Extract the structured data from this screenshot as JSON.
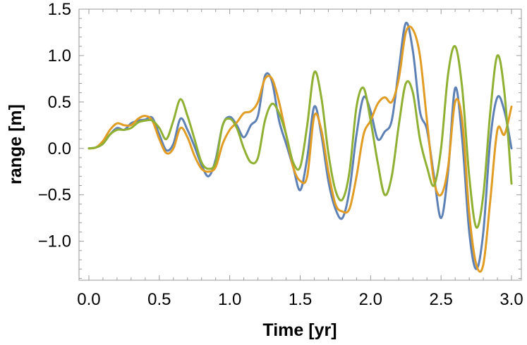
{
  "chart_data": {
    "type": "line",
    "title": "",
    "xlabel": "Time [yr]",
    "ylabel": "range [m]",
    "xlim": [
      -0.07,
      3.07
    ],
    "ylim": [
      -1.42,
      1.5
    ],
    "x_ticks": [
      0.0,
      0.5,
      1.0,
      1.5,
      2.0,
      2.5,
      3.0
    ],
    "x_tick_labels": [
      "0.0",
      "0.5",
      "1.0",
      "1.5",
      "2.0",
      "2.5",
      "3.0"
    ],
    "y_ticks": [
      -1.0,
      -0.5,
      0.0,
      0.5,
      1.0,
      1.5
    ],
    "y_tick_labels": [
      "−1.0",
      "−0.5",
      "0.0",
      "0.5",
      "1.0",
      "1.5"
    ],
    "grid": false,
    "legend": "none",
    "series": [
      {
        "color": "#5E81B5",
        "x": [
          0,
          0.05,
          0.1,
          0.15,
          0.2,
          0.25,
          0.3,
          0.35,
          0.4,
          0.45,
          0.5,
          0.55,
          0.6,
          0.65,
          0.7,
          0.75,
          0.8,
          0.85,
          0.9,
          0.95,
          1.0,
          1.05,
          1.1,
          1.15,
          1.2,
          1.25,
          1.3,
          1.35,
          1.4,
          1.45,
          1.5,
          1.55,
          1.6,
          1.65,
          1.7,
          1.75,
          1.8,
          1.85,
          1.9,
          1.95,
          2.0,
          2.05,
          2.1,
          2.15,
          2.2,
          2.25,
          2.3,
          2.35,
          2.4,
          2.45,
          2.5,
          2.55,
          2.6,
          2.65,
          2.7,
          2.75,
          2.8,
          2.85,
          2.9,
          2.95,
          3.0
        ],
        "y": [
          0,
          0.01,
          0.05,
          0.15,
          0.22,
          0.2,
          0.27,
          0.3,
          0.31,
          0.33,
          0.15,
          -0.02,
          0.05,
          0.32,
          0.2,
          0.02,
          -0.18,
          -0.3,
          -0.12,
          0.25,
          0.34,
          0.25,
          0.12,
          0.25,
          0.35,
          0.78,
          0.72,
          0.3,
          0.05,
          -0.2,
          -0.45,
          -0.1,
          0.45,
          0.15,
          -0.35,
          -0.65,
          -0.75,
          -0.45,
          0.15,
          0.55,
          0.4,
          0.1,
          0.18,
          0.3,
          0.85,
          1.35,
          1.05,
          0.4,
          0.2,
          -0.3,
          -0.75,
          -0.25,
          0.65,
          0.1,
          -0.9,
          -1.3,
          -0.9,
          0.1,
          0.55,
          0.4,
          0.0
        ]
      },
      {
        "color": "#E19C24",
        "x": [
          0,
          0.05,
          0.1,
          0.15,
          0.2,
          0.25,
          0.3,
          0.35,
          0.4,
          0.45,
          0.5,
          0.55,
          0.6,
          0.65,
          0.7,
          0.75,
          0.8,
          0.85,
          0.9,
          0.95,
          1.0,
          1.05,
          1.1,
          1.15,
          1.2,
          1.25,
          1.3,
          1.35,
          1.4,
          1.45,
          1.5,
          1.55,
          1.6,
          1.65,
          1.7,
          1.75,
          1.8,
          1.85,
          1.9,
          1.95,
          2.0,
          2.05,
          2.1,
          2.15,
          2.2,
          2.25,
          2.3,
          2.35,
          2.4,
          2.45,
          2.5,
          2.55,
          2.6,
          2.65,
          2.7,
          2.75,
          2.8,
          2.85,
          2.9,
          2.95,
          3.0
        ],
        "y": [
          0,
          0.01,
          0.08,
          0.2,
          0.27,
          0.25,
          0.25,
          0.32,
          0.35,
          0.3,
          0.1,
          -0.05,
          0.0,
          0.22,
          0.12,
          -0.08,
          -0.22,
          -0.25,
          -0.2,
          0.05,
          0.2,
          0.28,
          0.38,
          0.4,
          0.5,
          0.75,
          0.75,
          0.5,
          0.15,
          -0.2,
          -0.35,
          -0.3,
          0.35,
          0.2,
          -0.25,
          -0.6,
          -0.68,
          -0.65,
          -0.3,
          0.15,
          0.3,
          0.48,
          0.55,
          0.5,
          0.75,
          1.25,
          1.28,
          1.0,
          0.3,
          -0.35,
          -0.5,
          -0.2,
          0.5,
          0.3,
          -0.7,
          -1.25,
          -1.25,
          -0.55,
          0.2,
          0.15,
          0.45
        ]
      },
      {
        "color": "#8FB032",
        "x": [
          0,
          0.05,
          0.1,
          0.15,
          0.2,
          0.25,
          0.3,
          0.35,
          0.4,
          0.45,
          0.5,
          0.55,
          0.6,
          0.65,
          0.7,
          0.75,
          0.8,
          0.85,
          0.9,
          0.95,
          1.0,
          1.05,
          1.1,
          1.15,
          1.2,
          1.25,
          1.3,
          1.35,
          1.4,
          1.45,
          1.5,
          1.55,
          1.6,
          1.65,
          1.7,
          1.75,
          1.8,
          1.85,
          1.9,
          1.95,
          2.0,
          2.05,
          2.1,
          2.15,
          2.2,
          2.25,
          2.3,
          2.35,
          2.4,
          2.45,
          2.5,
          2.55,
          2.6,
          2.65,
          2.7,
          2.75,
          2.8,
          2.85,
          2.9,
          2.95,
          3.0
        ],
        "y": [
          0,
          0.01,
          0.05,
          0.15,
          0.2,
          0.2,
          0.22,
          0.28,
          0.3,
          0.3,
          0.22,
          0.1,
          0.3,
          0.53,
          0.35,
          0.1,
          -0.15,
          -0.22,
          -0.15,
          0.25,
          0.32,
          0.22,
          0.0,
          -0.15,
          -0.1,
          0.3,
          0.48,
          0.38,
          0.15,
          -0.15,
          -0.2,
          0.25,
          0.82,
          0.55,
          -0.05,
          -0.45,
          -0.55,
          -0.25,
          0.45,
          0.65,
          0.3,
          -0.15,
          -0.5,
          -0.3,
          0.25,
          0.7,
          0.6,
          0.1,
          -0.2,
          -0.4,
          0.0,
          0.8,
          1.1,
          0.65,
          -0.3,
          -0.85,
          -0.5,
          0.4,
          1.0,
          0.6,
          -0.38
        ]
      }
    ]
  }
}
